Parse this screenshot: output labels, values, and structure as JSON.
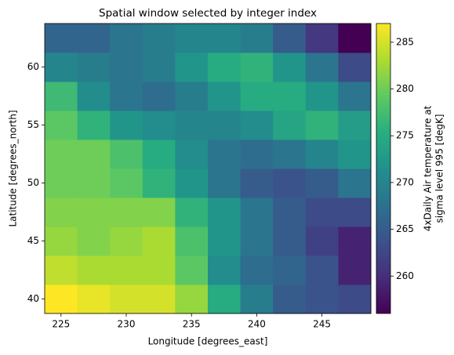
{
  "chart_data": {
    "type": "heatmap",
    "title": "Spatial window selected by integer index",
    "x_label": "Longitude [degrees_east]",
    "y_label": "Latitude [degrees_north]",
    "colorbar_label": [
      "4xDaily Air temperature at",
      "sigma level 995 [degK]"
    ],
    "x": [
      225,
      227.5,
      230,
      232.5,
      235,
      237.5,
      240,
      242.5,
      245,
      247.5
    ],
    "y": [
      40,
      42.5,
      45,
      47.5,
      50,
      52.5,
      55,
      57.5,
      60,
      62.5
    ],
    "z": [
      [
        287,
        286,
        285,
        285,
        282,
        275,
        269,
        265,
        264,
        263
      ],
      [
        284,
        283,
        283,
        283,
        279,
        271,
        267,
        266,
        264,
        259
      ],
      [
        282,
        281,
        282,
        283,
        278,
        272,
        268,
        265,
        262,
        259
      ],
      [
        281,
        281,
        281,
        281,
        276,
        272,
        268,
        265,
        263,
        263
      ],
      [
        280,
        280,
        279,
        276,
        272,
        268,
        265,
        264,
        265,
        268
      ],
      [
        280,
        280,
        278,
        275,
        271,
        268,
        267,
        268,
        270,
        272
      ],
      [
        279,
        276,
        272,
        271,
        270,
        270,
        271,
        274,
        276,
        273
      ],
      [
        277,
        271,
        268,
        267,
        269,
        272,
        275,
        275,
        272,
        268
      ],
      [
        270,
        269,
        268,
        269,
        272,
        275,
        276,
        272,
        268,
        263
      ],
      [
        266,
        266,
        268,
        269,
        270,
        270,
        269,
        265,
        261,
        256
      ]
    ],
    "xlim": [
      223.75,
      248.75
    ],
    "ylim": [
      38.75,
      63.75
    ],
    "xticks": [
      225,
      230,
      235,
      240,
      245
    ],
    "yticks": [
      40,
      45,
      50,
      55,
      60
    ],
    "colormap": "viridis",
    "clim": [
      256,
      287
    ],
    "colorbar_ticks": [
      260,
      265,
      270,
      275,
      280,
      285
    ]
  }
}
